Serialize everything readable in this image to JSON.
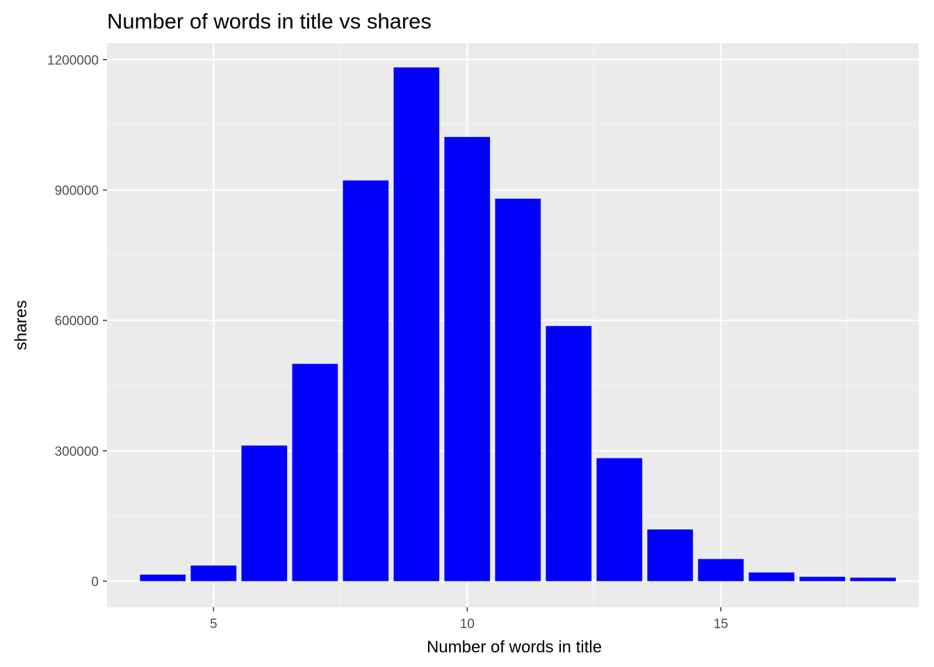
{
  "chart_data": {
    "type": "bar",
    "title": "Number of words in title vs shares",
    "xlabel": "Number of words in title",
    "ylabel": "shares",
    "x": [
      4,
      5,
      6,
      7,
      8,
      9,
      10,
      11,
      12,
      13,
      14,
      15,
      16,
      17,
      18
    ],
    "values": [
      15000,
      36000,
      312000,
      500000,
      922000,
      1182000,
      1022000,
      880000,
      587000,
      283000,
      119000,
      51000,
      20000,
      10000,
      8000
    ],
    "xlim": [
      2.9,
      18.9
    ],
    "ylim": [
      -60000,
      1238000
    ],
    "x_ticks": [
      5,
      10,
      15
    ],
    "x_tick_labels": [
      "5",
      "10",
      "15"
    ],
    "y_ticks": [
      0,
      300000,
      600000,
      900000,
      1200000
    ],
    "y_tick_labels": [
      "0",
      "300000",
      "600000",
      "900000",
      "1200000"
    ],
    "bar_width": 0.9,
    "grid": true,
    "colors": {
      "bar": "#0000FF",
      "panel_background": "#EBEBEB",
      "grid_major": "#FFFFFF",
      "grid_minor": "#F5F5F5",
      "tick_text": "#4D4D4D",
      "tick_mark": "#333333"
    }
  }
}
